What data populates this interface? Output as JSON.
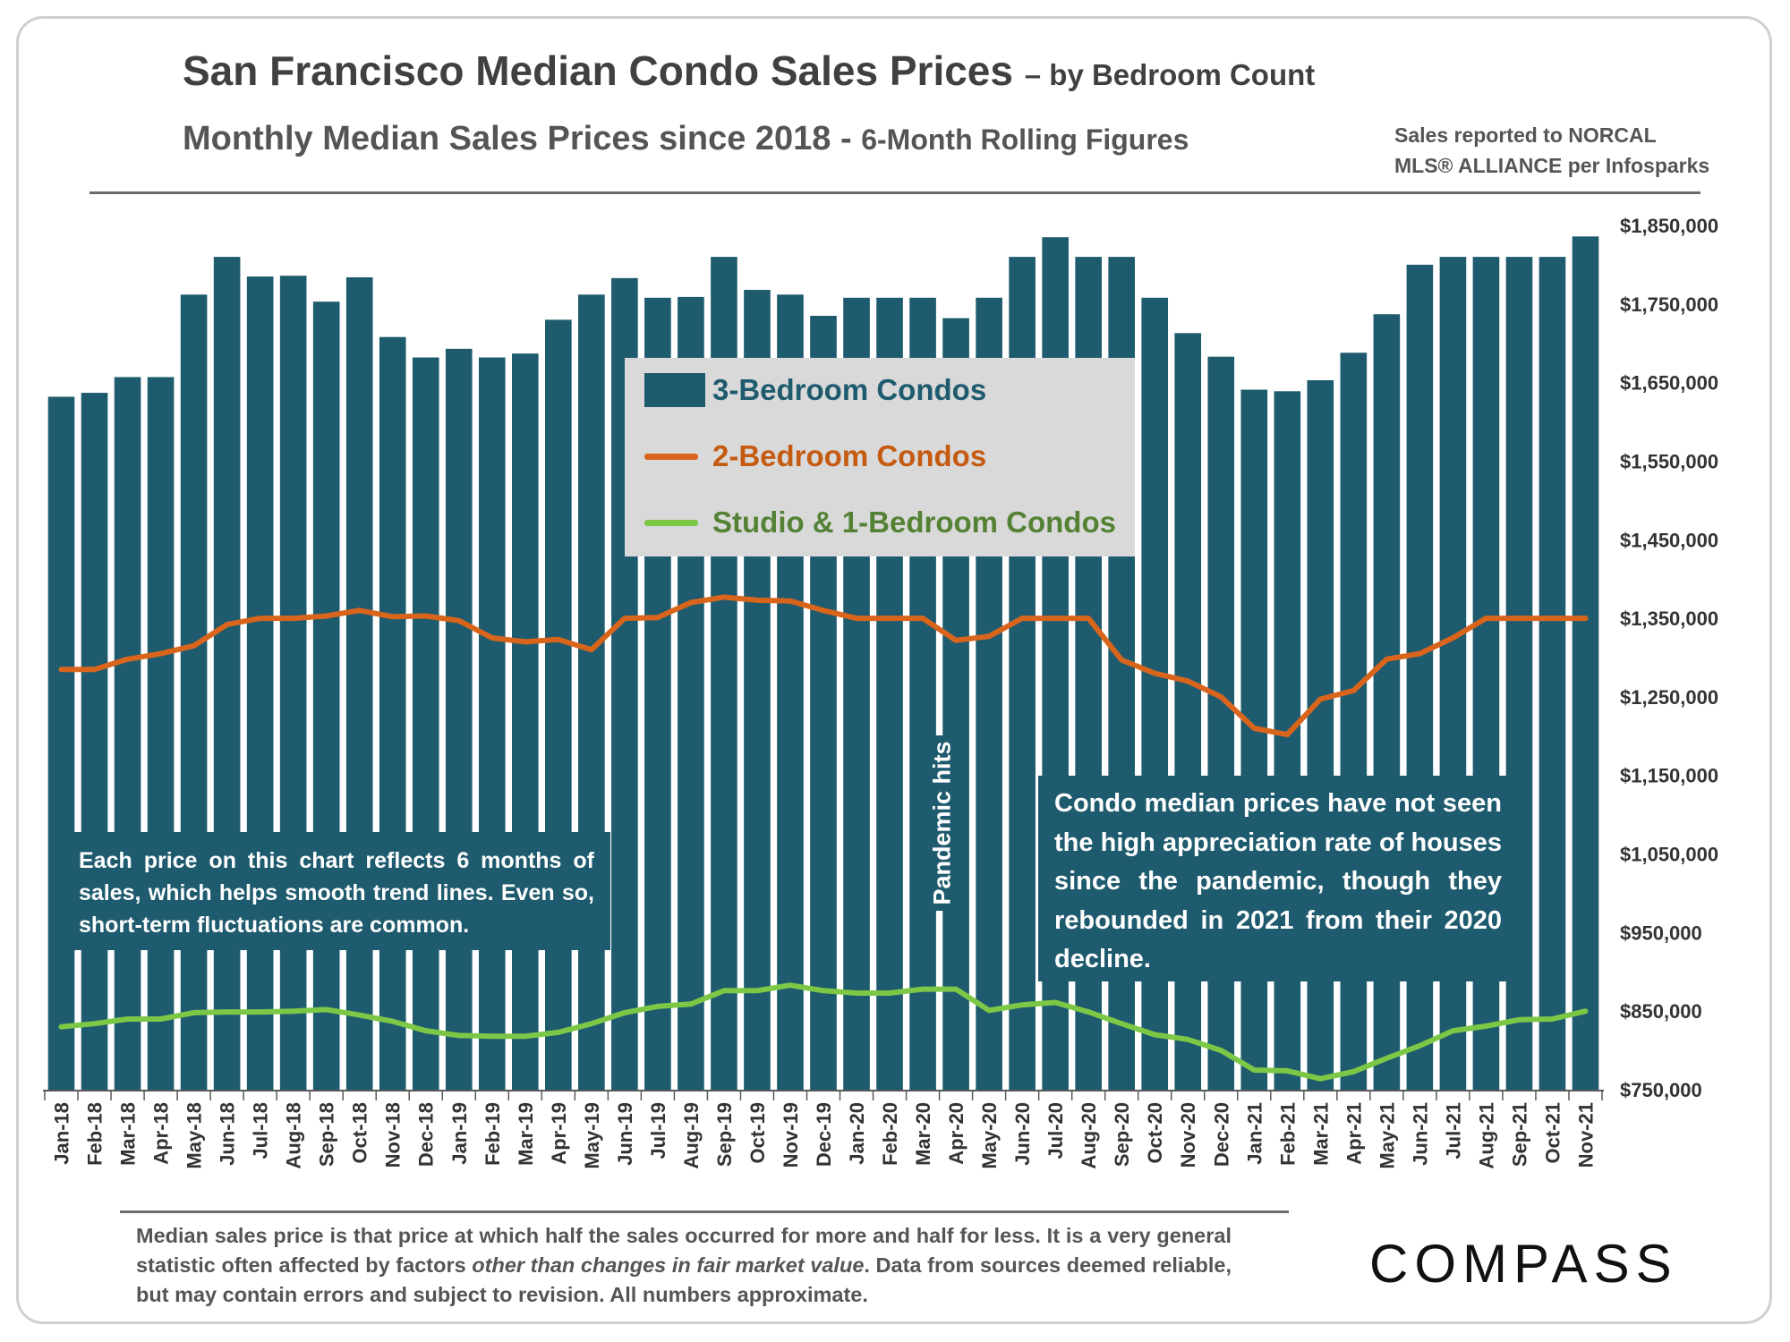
{
  "header": {
    "title": "San Francisco Median Condo Sales Prices",
    "title_suffix": "– by Bedroom Count",
    "subtitle": "Monthly Median Sales Prices since 2018 - ",
    "subtitle_suffix": "6-Month Rolling Figures",
    "source_line1": "Sales reported to NORCAL",
    "source_line2": "MLS® ALLIANCE per Infosparks"
  },
  "annotations": {
    "left_note": "Each price on this chart reflects 6 months of sales, which helps smooth trend lines. Even so, short-term fluctuations are common.",
    "right_note": "Condo median prices have not seen the high appreciation rate of houses since the pandemic, though they rebounded in 2021 from their 2020 decline.",
    "pandemic_label": "Pandemic hits"
  },
  "footer": {
    "note_part1": "Median sales price is that price at which half the sales occurred for more and half for less. It is a very general statistic often affected by factors ",
    "note_italic": "other than changes in fair market value",
    "note_part2": ". Data from sources deemed reliable, but may contain errors and subject to revision. All numbers approximate.",
    "logo_text": "COMPASS"
  },
  "colors": {
    "bars": "#1f5b6e",
    "two_bed": "#d9651c",
    "studio_one_bed": "#7cc846",
    "legend_bg": "#d9d9d9",
    "note_bg": "#1f5b6e"
  },
  "chart_data": {
    "type": "bar",
    "categories": [
      "Jan-18",
      "Feb-18",
      "Mar-18",
      "Apr-18",
      "May-18",
      "Jun-18",
      "Jul-18",
      "Aug-18",
      "Sep-18",
      "Oct-18",
      "Nov-18",
      "Dec-18",
      "Jan-19",
      "Feb-19",
      "Mar-19",
      "Apr-19",
      "May-19",
      "Jun-19",
      "Jul-19",
      "Aug-19",
      "Sep-19",
      "Oct-19",
      "Nov-19",
      "Dec-19",
      "Jan-20",
      "Feb-20",
      "Mar-20",
      "Apr-20",
      "May-20",
      "Jun-20",
      "Jul-20",
      "Aug-20",
      "Sep-20",
      "Oct-20",
      "Nov-20",
      "Dec-20",
      "Jan-21",
      "Feb-21",
      "Mar-21",
      "Apr-21",
      "May-21",
      "Jun-21",
      "Jul-21",
      "Aug-21",
      "Sep-21",
      "Oct-21",
      "Nov-21"
    ],
    "series": [
      {
        "name": "3-Bedroom Condos",
        "kind": "bar",
        "values": [
          1632000,
          1637000,
          1657000,
          1657000,
          1762000,
          1810000,
          1785000,
          1786000,
          1753000,
          1784000,
          1708000,
          1682000,
          1693000,
          1682000,
          1687000,
          1730000,
          1762000,
          1783000,
          1758000,
          1759000,
          1810000,
          1768000,
          1762000,
          1735000,
          1758000,
          1758000,
          1758000,
          1732000,
          1758000,
          1810000,
          1835000,
          1810000,
          1810000,
          1758000,
          1713000,
          1683000,
          1641000,
          1639000,
          1653000,
          1688000,
          1737000,
          1800000,
          1810000,
          1810000,
          1810000,
          1810000,
          1836000
        ]
      },
      {
        "name": "2-Bedroom Condos",
        "kind": "line",
        "values": [
          1285000,
          1285000,
          1298000,
          1305000,
          1315000,
          1342000,
          1350000,
          1350000,
          1353000,
          1360000,
          1352000,
          1353000,
          1347000,
          1325000,
          1320000,
          1323000,
          1310000,
          1350000,
          1351000,
          1370000,
          1377000,
          1373000,
          1372000,
          1360000,
          1350000,
          1350000,
          1350000,
          1322000,
          1327000,
          1350000,
          1350000,
          1350000,
          1297000,
          1280000,
          1270000,
          1250000,
          1210000,
          1202000,
          1247000,
          1258000,
          1298000,
          1305000,
          1325000,
          1350000,
          1350000,
          1350000,
          1350000
        ]
      },
      {
        "name": "Studio & 1-Bedroom Condos",
        "kind": "line",
        "values": [
          830000,
          834000,
          840000,
          840000,
          848000,
          849000,
          849000,
          850000,
          852000,
          845000,
          837000,
          825000,
          819000,
          818000,
          818000,
          823000,
          834000,
          848000,
          856000,
          859000,
          876000,
          876000,
          883000,
          876000,
          873000,
          873000,
          878000,
          878000,
          851000,
          858000,
          861000,
          849000,
          834000,
          820000,
          814000,
          800000,
          775000,
          774000,
          764000,
          773000,
          790000,
          806000,
          825000,
          831000,
          839000,
          840000,
          850000
        ]
      }
    ],
    "y_axis": {
      "min": 750000,
      "max": 1850000,
      "ticks": [
        750000,
        850000,
        950000,
        1050000,
        1150000,
        1250000,
        1350000,
        1450000,
        1550000,
        1650000,
        1750000,
        1850000
      ],
      "tick_labels": [
        "$750,000",
        "$850,000",
        "$950,000",
        "$1,050,000",
        "$1,150,000",
        "$1,250,000",
        "$1,350,000",
        "$1,450,000",
        "$1,550,000",
        "$1,650,000",
        "$1,750,000",
        "$1,850,000"
      ],
      "position": "right"
    },
    "grid": false,
    "legend_position": "center"
  }
}
